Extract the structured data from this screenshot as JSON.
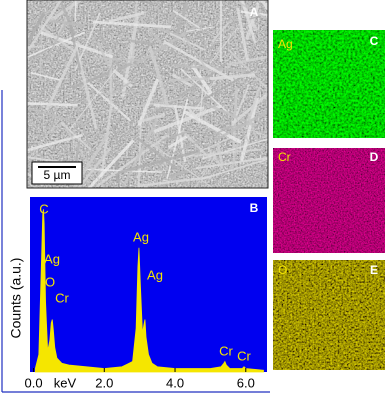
{
  "panels": {
    "a": {
      "title": "A",
      "scale_bar": "5 µm"
    },
    "c": {
      "title": "C",
      "element": "Ag"
    },
    "d": {
      "title": "D",
      "element": "Cr"
    },
    "e": {
      "title": "E",
      "element": "O"
    }
  },
  "chart_data": {
    "type": "area",
    "title": "B",
    "x_label": "keV",
    "y_label": "Counts (a.u.)",
    "color": "#f5e600",
    "background": "#0000f0",
    "x": [
      0.05,
      0.15,
      0.22,
      0.26,
      0.28,
      0.3,
      0.34,
      0.4,
      0.46,
      0.5,
      0.53,
      0.56,
      0.6,
      0.66,
      0.8,
      1.0,
      1.5,
      2.0,
      2.5,
      2.8,
      2.9,
      2.95,
      2.98,
      3.02,
      3.08,
      3.12,
      3.15,
      3.18,
      3.25,
      3.35,
      3.5,
      4.0,
      4.5,
      5.0,
      5.3,
      5.38,
      5.41,
      5.45,
      5.55,
      5.9,
      5.95,
      6.0,
      6.5
    ],
    "values": [
      2,
      10,
      60,
      90,
      93,
      85,
      40,
      12,
      18,
      28,
      30,
      24,
      14,
      8,
      5,
      4,
      3,
      2,
      3,
      6,
      25,
      60,
      71,
      50,
      22,
      27,
      30,
      20,
      10,
      5,
      3,
      2,
      2,
      2,
      3,
      5,
      6,
      4,
      2,
      2,
      3,
      2,
      1
    ],
    "xlim": [
      -0.1,
      6.6
    ],
    "ylim": [
      0,
      100
    ],
    "xticks": [
      {
        "value": 0,
        "label": "0.0"
      },
      {
        "value": 2,
        "label": "2.0"
      },
      {
        "value": 4,
        "label": "4.0"
      },
      {
        "value": 6,
        "label": "6.0"
      }
    ],
    "annotations": [
      "C",
      "Ag",
      "O",
      "Cr",
      "Ag",
      "Ag",
      "Cr",
      "Cr"
    ]
  }
}
